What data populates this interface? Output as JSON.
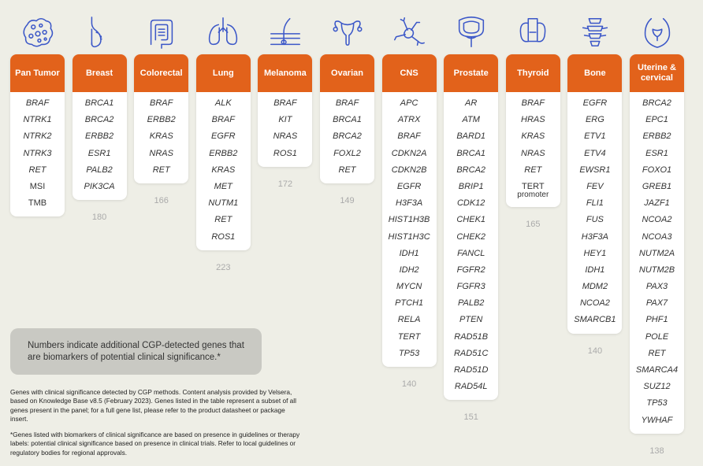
{
  "panels": [
    {
      "title": "Pan Tumor",
      "icon": "cells-icon",
      "genes": [
        "BRAF",
        "NTRK1",
        "NTRK2",
        "NTRK3",
        "RET",
        "MSI",
        "TMB"
      ],
      "count": ""
    },
    {
      "title": "Breast",
      "icon": "breast-icon",
      "genes": [
        "BRCA1",
        "BRCA2",
        "ERBB2",
        "ESR1",
        "PALB2",
        "PIK3CA"
      ],
      "count": "180"
    },
    {
      "title": "Colorectal",
      "icon": "intestine-icon",
      "genes": [
        "BRAF",
        "ERBB2",
        "KRAS",
        "NRAS",
        "RET"
      ],
      "count": "166"
    },
    {
      "title": "Lung",
      "icon": "lungs-icon",
      "genes": [
        "ALK",
        "BRAF",
        "EGFR",
        "ERBB2",
        "KRAS",
        "MET",
        "NUTM1",
        "RET",
        "ROS1"
      ],
      "count": "223"
    },
    {
      "title": "Melanoma",
      "icon": "skin-icon",
      "genes": [
        "BRAF",
        "KIT",
        "NRAS",
        "ROS1"
      ],
      "count": "172"
    },
    {
      "title": "Ovarian",
      "icon": "uterus-icon",
      "genes": [
        "BRAF",
        "BRCA1",
        "BRCA2",
        "FOXL2",
        "RET"
      ],
      "count": "149"
    },
    {
      "title": "CNS",
      "icon": "neuron-icon",
      "genes": [
        "APC",
        "ATRX",
        "BRAF",
        "CDKN2A",
        "CDKN2B",
        "EGFR",
        "H3F3A",
        "HIST1H3B",
        "HIST1H3C",
        "IDH1",
        "IDH2",
        "MYCN",
        "PTCH1",
        "RELA",
        "TERT",
        "TP53"
      ],
      "count": "140"
    },
    {
      "title": "Prostate",
      "icon": "prostate-icon",
      "genes": [
        "AR",
        "ATM",
        "BARD1",
        "BRCA1",
        "BRCA2",
        "BRIP1",
        "CDK12",
        "CHEK1",
        "CHEK2",
        "FANCL",
        "FGFR2",
        "FGFR3",
        "PALB2",
        "PTEN",
        "RAD51B",
        "RAD51C",
        "RAD51D",
        "RAD54L"
      ],
      "count": "151"
    },
    {
      "title": "Thyroid",
      "icon": "thyroid-icon",
      "genes": [
        "BRAF",
        "HRAS",
        "KRAS",
        "NRAS",
        "RET",
        "TERT"
      ],
      "gene_sub": "promoter",
      "count": "165"
    },
    {
      "title": "Bone",
      "icon": "spine-icon",
      "genes": [
        "EGFR",
        "ERG",
        "ETV1",
        "ETV4",
        "EWSR1",
        "FEV",
        "FLI1",
        "FUS",
        "H3F3A",
        "HEY1",
        "IDH1",
        "MDM2",
        "NCOA2",
        "SMARCB1"
      ],
      "count": "140"
    },
    {
      "title": "Uterine & cervical",
      "icon": "pelvis-icon",
      "genes": [
        "BRCA2",
        "EPC1",
        "ERBB2",
        "ESR1",
        "FOXO1",
        "GREB1",
        "JAZF1",
        "NCOA2",
        "NCOA3",
        "NUTM2A",
        "NUTM2B",
        "PAX3",
        "PAX7",
        "PHF1",
        "POLE",
        "RET",
        "SMARCA4",
        "SUZ12",
        "TP53",
        "YWHAF"
      ],
      "count": "138"
    }
  ],
  "callout": "Numbers indicate additional CGP-detected genes that are biomarkers of potential clinical significance.*",
  "footnote1": "Genes with clinical significance detected by CGP methods. Content analysis provided by Velsera, based on Knowledge Base v8.5 (February 2023). Genes listed in the table represent a subset of all genes present in the panel; for a full gene list, please refer to the product datasheet or package insert.",
  "footnote2": "*Genes listed with biomarkers of clinical significance are based on presence in guidelines or therapy labels: potential clinical significance based on presence in clinical trials. Refer to local guidelines or regulatory bodies for regional approvals.",
  "colors": {
    "accent": "#e2621b",
    "icon": "#3b57c8"
  }
}
